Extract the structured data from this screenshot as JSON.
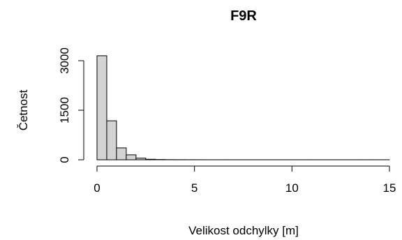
{
  "chart_data": {
    "type": "bar",
    "title": "F9R",
    "xlabel": "Velikost odchylky [m]",
    "ylabel": "Četnost",
    "bin_width": 0.5,
    "bins_start": [
      0,
      0.5,
      1.0,
      1.5,
      2.0,
      2.5,
      3.0,
      3.5,
      4.0,
      4.5,
      5.0,
      5.5,
      6.0,
      6.5,
      7.0,
      7.5,
      8.0,
      8.5,
      9.0,
      9.5,
      10.0,
      10.5,
      11.0,
      11.5,
      12.0,
      12.5,
      13.0,
      13.5,
      14.0,
      14.5
    ],
    "values": [
      3150,
      1180,
      360,
      150,
      50,
      15,
      8,
      4,
      3,
      2,
      2,
      1,
      1,
      1,
      1,
      1,
      1,
      1,
      1,
      1,
      1,
      1,
      1,
      1,
      1,
      1,
      1,
      1,
      1,
      1
    ],
    "xlim": [
      0,
      15
    ],
    "ylim": [
      0,
      3000
    ],
    "x_ticks": [
      0,
      5,
      10,
      15
    ],
    "y_ticks": [
      0,
      1500,
      3000
    ],
    "grid": false,
    "bar_fill": "#d3d3d3",
    "bar_stroke": "#000000"
  }
}
